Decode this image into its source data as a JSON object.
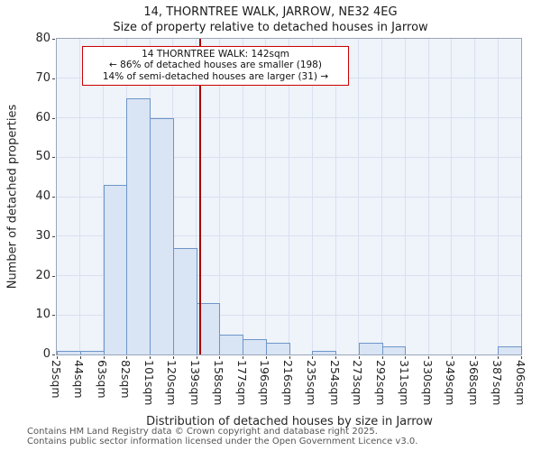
{
  "title": {
    "line1": "14, THORNTREE WALK, JARROW, NE32 4EG",
    "line2": "Size of property relative to detached houses in Jarrow"
  },
  "annotation": {
    "line1": "14 THORNTREE WALK: 142sqm",
    "line2": "← 86% of detached houses are smaller (198)",
    "line3": "14% of semi-detached houses are larger (31) →"
  },
  "axes": {
    "xlabel": "Distribution of detached houses by size in Jarrow",
    "ylabel": "Number of detached properties"
  },
  "footer": {
    "line1": "Contains HM Land Registry data © Crown copyright and database right 2025.",
    "line2": "Contains public sector information licensed under the Open Government Licence v3.0."
  },
  "chart_data": {
    "type": "bar",
    "title": "14, THORNTREE WALK, JARROW, NE32 4EG",
    "subtitle": "Size of property relative to detached houses in Jarrow",
    "xlabel": "Distribution of detached houses by size in Jarrow",
    "ylabel": "Number of detached properties",
    "categories": [
      "25sqm",
      "44sqm",
      "63sqm",
      "82sqm",
      "101sqm",
      "120sqm",
      "139sqm",
      "158sqm",
      "177sqm",
      "196sqm",
      "216sqm",
      "235sqm",
      "254sqm",
      "273sqm",
      "292sqm",
      "311sqm",
      "330sqm",
      "349sqm",
      "368sqm",
      "387sqm",
      "406sqm"
    ],
    "values": [
      1,
      1,
      43,
      65,
      60,
      27,
      13,
      5,
      4,
      3,
      0,
      1,
      0,
      3,
      2,
      0,
      0,
      0,
      0,
      2
    ],
    "ylim": [
      0,
      80
    ],
    "yticks": [
      0,
      10,
      20,
      30,
      40,
      50,
      60,
      70,
      80
    ],
    "grid": true,
    "marker": {
      "value_sqm": 142,
      "label": "14 THORNTREE WALK: 142sqm",
      "smaller_pct": 86,
      "smaller_count": 198,
      "larger_pct": 14,
      "larger_count": 31
    },
    "colors": {
      "bar_fill": "#d9e4f4",
      "bar_border": "#6e96c8",
      "grid": "#d9e0f0",
      "plot_bg": "#eff3fa",
      "marker_line": "#a50000",
      "annotation_border": "#cc0000"
    }
  }
}
